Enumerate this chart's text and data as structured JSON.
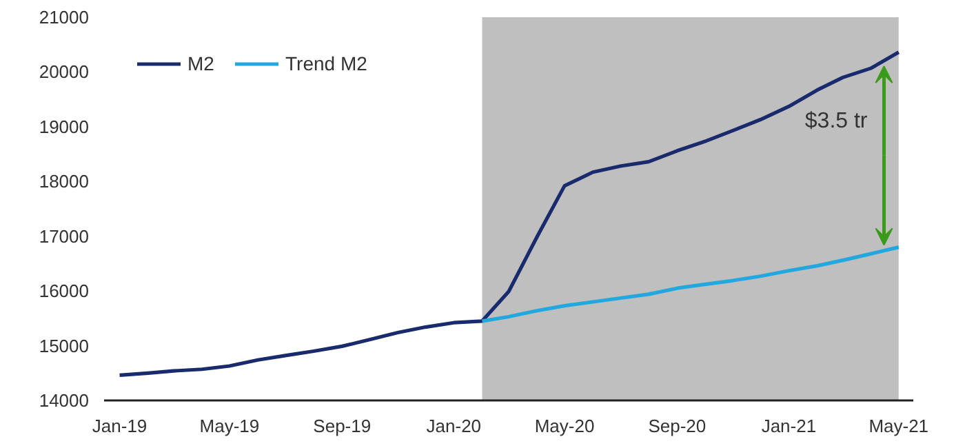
{
  "chart_data": {
    "type": "line",
    "x": [
      "2019-01",
      "2019-02",
      "2019-03",
      "2019-04",
      "2019-05",
      "2019-06",
      "2019-07",
      "2019-08",
      "2019-09",
      "2019-10",
      "2019-11",
      "2019-12",
      "2020-01",
      "2020-02",
      "2020-03",
      "2020-04",
      "2020-05",
      "2020-06",
      "2020-07",
      "2020-08",
      "2020-09",
      "2020-10",
      "2020-11",
      "2020-12",
      "2021-01",
      "2021-02",
      "2021-03",
      "2021-04",
      "2021-05"
    ],
    "series": [
      {
        "name": "M2",
        "color": "#1a2b6d",
        "values": [
          14460,
          14500,
          14540,
          14570,
          14630,
          14740,
          14820,
          14900,
          14990,
          15110,
          15240,
          15340,
          15420,
          15450,
          15990,
          16990,
          17920,
          18170,
          18280,
          18360,
          18560,
          18730,
          18930,
          19130,
          19370,
          19670,
          19900,
          20070,
          20360
        ]
      },
      {
        "name": "Trend M2",
        "color": "#22a7df",
        "x": [
          "2020-02",
          "2020-03",
          "2020-04",
          "2020-05",
          "2020-06",
          "2020-07",
          "2020-08",
          "2020-09",
          "2020-10",
          "2020-11",
          "2020-12",
          "2021-01",
          "2021-02",
          "2021-03",
          "2021-04",
          "2021-05"
        ],
        "values": [
          15450,
          15530,
          15640,
          15730,
          15800,
          15870,
          15940,
          16050,
          16120,
          16190,
          16270,
          16370,
          16460,
          16560,
          16680,
          16800
        ]
      }
    ],
    "xlim": [
      "2018-12-15",
      "2021-05-17"
    ],
    "xticks": [
      {
        "value": "2019-01",
        "label": "Jan-19"
      },
      {
        "value": "2019-05",
        "label": "May-19"
      },
      {
        "value": "2019-09",
        "label": "Sep-19"
      },
      {
        "value": "2020-01",
        "label": "Jan-20"
      },
      {
        "value": "2020-05",
        "label": "May-20"
      },
      {
        "value": "2020-09",
        "label": "Sep-20"
      },
      {
        "value": "2021-01",
        "label": "Jan-21"
      },
      {
        "value": "2021-05",
        "label": "May-21"
      }
    ],
    "ylim": [
      14000,
      21000
    ],
    "yticks": [
      14000,
      15000,
      16000,
      17000,
      18000,
      19000,
      20000,
      21000
    ],
    "bands": [
      {
        "axis": "x",
        "from": "2020-02",
        "to": "2021-05",
        "color": "#bfbfbf"
      }
    ],
    "annotations": [
      {
        "text": "$3.5 tr",
        "x": "2021-04-15",
        "y": 20210
      }
    ],
    "legend": "top left",
    "grid": false
  }
}
